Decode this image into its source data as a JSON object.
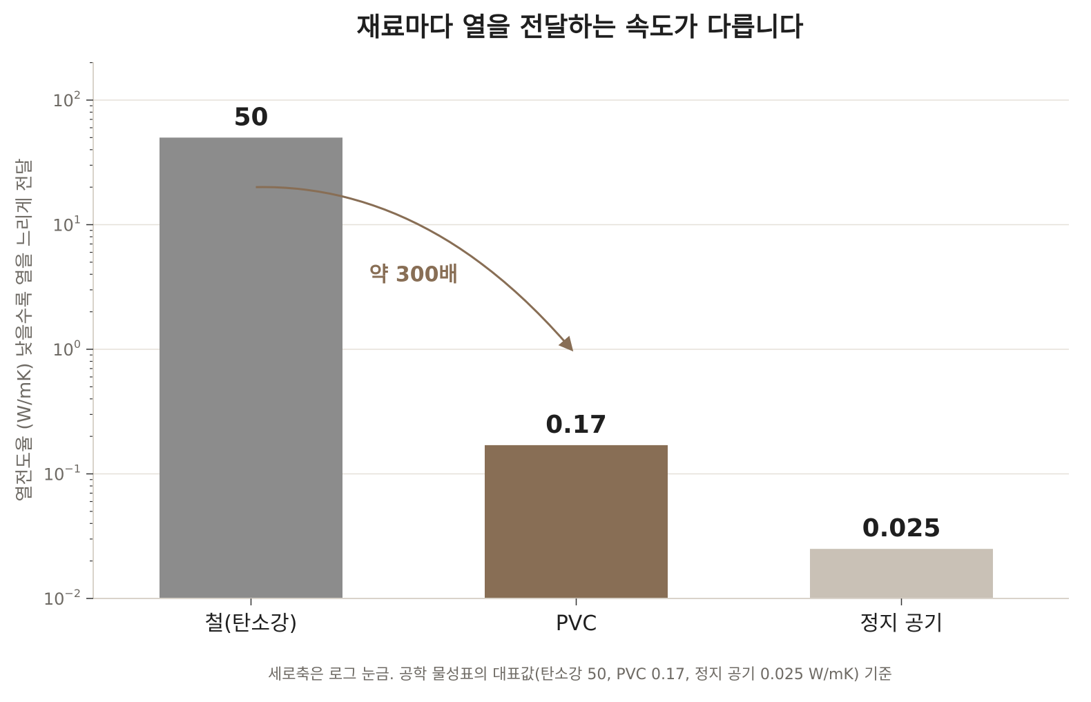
{
  "chart_data": {
    "type": "bar",
    "title": "재료마다 열을 전달하는 속도가 다릅니다",
    "ylabel": "열전도율 (W/mK)  낮을수록 열을 느리게 전달",
    "xlabel": "",
    "yscale": "log",
    "ylim": [
      0.01,
      200
    ],
    "grid": "horizontal",
    "categories": [
      "철(탄소강)",
      "PVC",
      "정지 공기"
    ],
    "values": [
      50,
      0.17,
      0.025
    ],
    "value_labels": [
      "50",
      "0.17",
      "0.025"
    ],
    "bar_colors": [
      "#8c8c8c",
      "#886e55",
      "#c9c1b6"
    ],
    "y_ticks": [
      {
        "value": 0.01,
        "base": "10",
        "exp": "−2"
      },
      {
        "value": 0.1,
        "base": "10",
        "exp": "−1"
      },
      {
        "value": 1,
        "base": "10",
        "exp": "0"
      },
      {
        "value": 10,
        "base": "10",
        "exp": "1"
      },
      {
        "value": 100,
        "base": "10",
        "exp": "2"
      }
    ],
    "annotation": {
      "text": "약 300배",
      "from_category": "철(탄소강)",
      "from_value": 20,
      "to_category": "PVC",
      "to_value": 1,
      "color": "#886e55"
    },
    "footnote": "세로축은 로그 눈금. 공학 물성표의 대표값(탄소강 50, PVC 0.17, 정지 공기 0.025 W/mK) 기준"
  },
  "colors": {
    "grid": "#e5e0d8",
    "axis": "#d9d3ca",
    "text": "#1f1f1f",
    "muted": "#6e6a64"
  }
}
